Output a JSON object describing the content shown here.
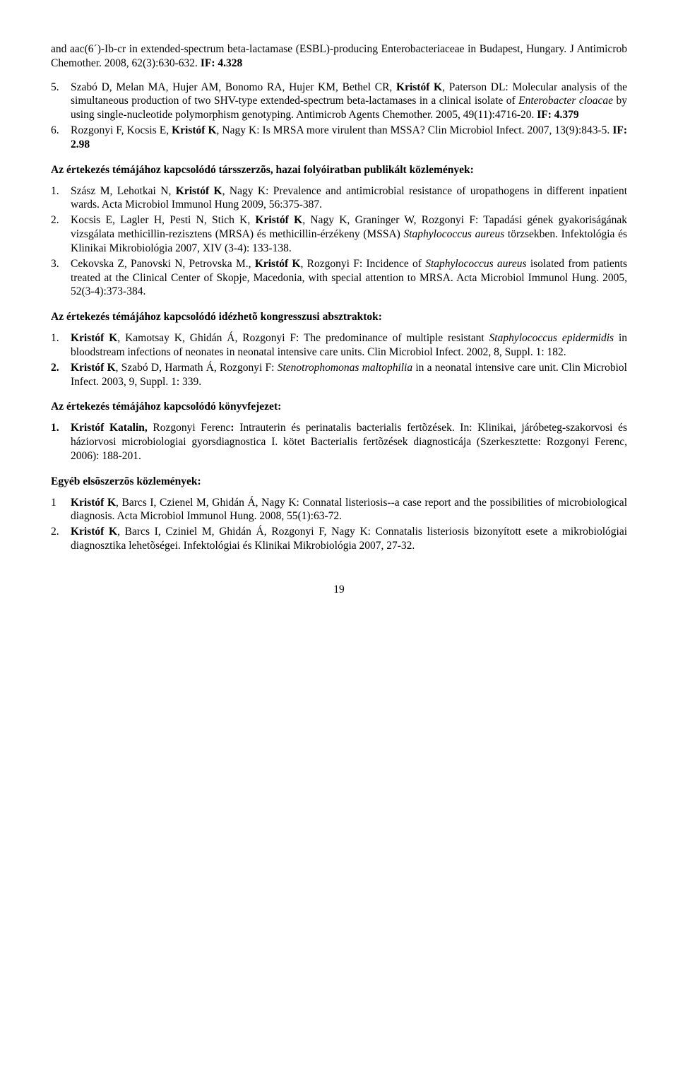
{
  "intro_paras": [
    "and aac(6´)-Ib-cr in extended-spectrum beta-lactamase (ESBL)-producing Enterobacteriaceae in Budapest, Hungary. J Antimicrob Chemother. 2008, 62(3):630-632. <b>IF: 4.328</b>"
  ],
  "intro_items": [
    {
      "num": "5.",
      "html": "Szabó D, Melan MA, Hujer AM, Bonomo RA, Hujer KM, Bethel CR, <b>Kristóf K</b>, Paterson DL: Molecular analysis of the simultaneous production of two SHV-type extended-spectrum beta-lactamases in a clinical isolate of <i>Enterobacter cloacae</i> by using single-nucleotide polymorphism genotyping. Antimicrob Agents Chemother. 2005, 49(11):4716-20. <b>IF: 4.379</b>"
    },
    {
      "num": "6.",
      "html": "Rozgonyi F, Kocsis E, <b>Kristóf K</b>, Nagy K: Is MRSA more virulent than MSSA? Clin Microbiol Infect. 2007, 13(9):843-5. <b>IF: 2.98</b>"
    }
  ],
  "sections": [
    {
      "heading": "Az értekezés témájához kapcsolódó társszerzõs, hazai folyóiratban publikált közlemények:",
      "heading_style": "justify-block",
      "items": [
        {
          "num": "1.",
          "html": "Szász M, Lehotkai N, <b>Kristóf K</b>, Nagy K: Prevalence and antimicrobial resistance of uropathogens in different inpatient wards. Acta Microbiol Immunol Hung 2009, 56:375-387."
        },
        {
          "num": "2.",
          "html": "Kocsis E, Lagler H, Pesti N, Stich K, <b>Kristóf K</b>, Nagy K, Graninger W, Rozgonyi F: Tapadási gének gyakoriságának vizsgálata methicillin-rezisztens (MRSA) és methicillin-érzékeny (MSSA) <i>Staphylococcus aureus</i> törzsekben. Infektológia és Klinikai Mikrobiológia 2007, XIV (3-4): 133-138."
        },
        {
          "num": "3.",
          "html": "Cekovska Z, Panovski N, Petrovska M., <b>Kristóf K</b>, Rozgonyi F: Incidence of <i>Staphylococcus aureus</i> isolated from patients treated at the Clinical Center of Skopje, Macedonia, with special attention to MRSA. Acta Microbiol Immunol Hung. 2005, 52(3-4):373-384."
        }
      ]
    },
    {
      "heading": "Az értekezés témájához kapcsolódó idézhetõ kongresszusi absztraktok:",
      "heading_style": "left",
      "items": [
        {
          "num": "1.",
          "html": "<b>Kristóf K</b>, Kamotsay K, Ghidán Á, Rozgonyi F: The predominance of multiple resistant <i>Staphylococcus epidermidis</i> in bloodstream infections of neonates in neonatal intensive care units. Clin Microbiol Infect. 2002, 8, Suppl. 1: 182."
        },
        {
          "num": "<b>2.</b>",
          "html": "<b>Kristóf K</b>, Szabó D, Harmath Á, Rozgonyi F: <i>Stenotrophomonas maltophilia</i> in a neonatal intensive care unit. Clin Microbiol Infect. 2003, 9, Suppl. 1: 339."
        }
      ]
    },
    {
      "heading": "Az értekezés témájához kapcsolódó könyvfejezet:",
      "heading_style": "left",
      "items": [
        {
          "num": "<b>1.</b>",
          "html": "<b>Kristóf Katalin,</b> Rozgonyi Ferenc<b>:</b> Intrauterin és perinatalis bacterialis fertõzések. In: Klinikai, járóbeteg-szakorvosi és háziorvosi microbiologiai gyorsdiagnostica I. kötet Bacterialis fertõzések diagnosticája (Szerkesztette: Rozgonyi Ferenc, 2006): 188-201."
        }
      ]
    },
    {
      "heading": "Egyéb elsõszerzõs közlemények:",
      "heading_style": "left",
      "items": [
        {
          "num": "1",
          "html": "<b>Kristóf K</b>, Barcs I, Czienel M, Ghidán Á, Nagy K: Connatal listeriosis--a case report and the possibilities of microbiological diagnosis. Acta Microbiol Immunol Hung. 2008, 55(1):63-72."
        },
        {
          "num": "2.",
          "html": "<b>Kristóf K</b>, Barcs I, Cziniel M, Ghidán Á, Rozgonyi F, Nagy K: Connatalis listeriosis bizonyított esete a mikrobiológiai diagnosztika lehetõségei. Infektológiai és Klinikai Mikrobiológia 2007, 27-32."
        }
      ]
    }
  ],
  "page_number": "19"
}
